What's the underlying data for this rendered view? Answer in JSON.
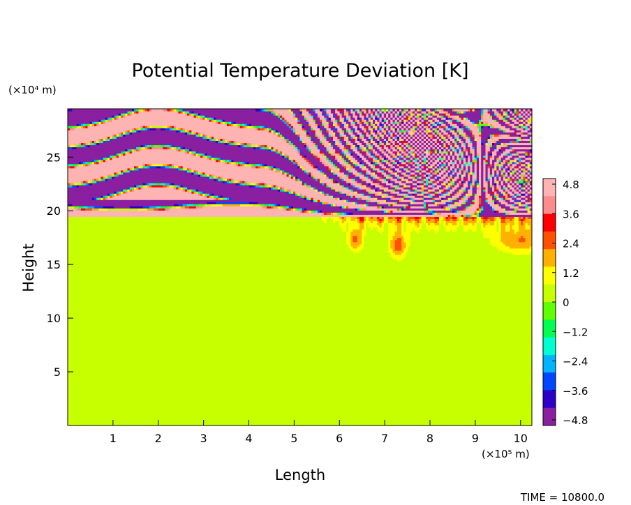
{
  "chart_data": {
    "type": "heatmap",
    "title": "Potential Temperature Deviation [K]",
    "xlabel": "Length",
    "ylabel": "Height",
    "x_unit": "(×10⁵ m)",
    "y_unit": "(×10⁴ m)",
    "xlim": [
      0,
      10.25
    ],
    "ylim": [
      0,
      29.5
    ],
    "x_ticks": [
      "1",
      "2",
      "3",
      "4",
      "5",
      "6",
      "7",
      "8",
      "9",
      "10"
    ],
    "y_ticks": [
      "5",
      "10",
      "15",
      "20",
      "25"
    ],
    "colorbar": {
      "ticks": [
        "4.8",
        "3.6",
        "2.4",
        "1.2",
        "0",
        "−1.2",
        "−2.4",
        "−3.6",
        "−4.8"
      ],
      "min": -5.2,
      "max": 5.2,
      "colors": [
        "#8a1fa0",
        "#2d00c8",
        "#0045ff",
        "#00b4ff",
        "#00ffd0",
        "#00ff50",
        "#60ff00",
        "#c8ff00",
        "#ffff00",
        "#ffb000",
        "#ff5000",
        "#ff0000",
        "#ff8c8c",
        "#ffb4b4"
      ]
    },
    "background_level": 0,
    "stratosphere_base_height": 19.5,
    "description_of_field": "Near-zero deviation below ~19.5; alternating saturated bands (>4.8 and <-4.8) of wave structure above, fanning upward to the right from x≈5 with localized warm anomalies (2–4.8) near the base between x≈5.5 and 10.",
    "time_label": "TIME = 10800.0"
  }
}
